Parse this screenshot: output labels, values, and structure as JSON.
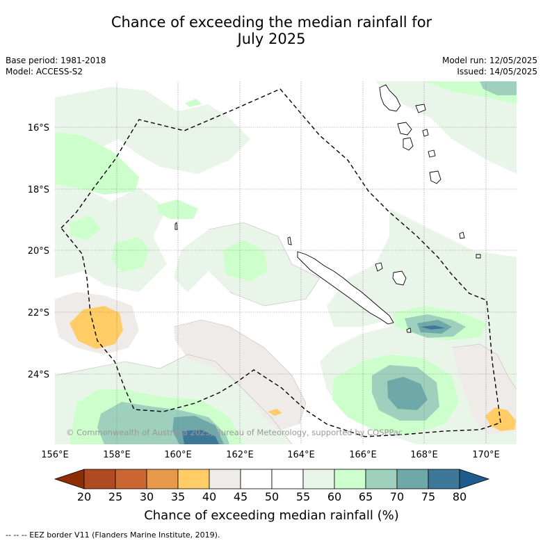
{
  "title": {
    "line1": "Chance of exceeding the median rainfall for",
    "line2": "July 2025"
  },
  "meta": {
    "base_period": "Base period: 1981-2018",
    "model": "Model: ACCESS-S2",
    "model_run": "Model run: 12/05/2025",
    "issued": "Issued: 14/05/2025"
  },
  "map": {
    "lon_labels": [
      "156°E",
      "158°E",
      "160°E",
      "162°E",
      "164°E",
      "166°E",
      "168°E",
      "170°E"
    ],
    "lat_labels": [
      "16°S",
      "18°S",
      "20°S",
      "22°S",
      "24°S"
    ],
    "copyright": "© Commonwealth of Australia 2025, Bureau of Meteorology, supported by COSPPac",
    "colors": {
      "c20": "#8c2d04",
      "c20_25": "#b04a22",
      "c25_30": "#cc6633",
      "c30_35": "#e69a4a",
      "c35_40": "#ffcc66",
      "c40_45": "#efebe8",
      "c45_55": "#ffffff",
      "c55_60": "#e9f5e9",
      "c60_65": "#ccffcc",
      "c65_70": "#9ed0bd",
      "c70_75": "#6fa8a8",
      "c75_80": "#3d7898",
      "c80": "#1f5b8c"
    }
  },
  "colorbar": {
    "ticks": [
      "20",
      "25",
      "30",
      "35",
      "40",
      "45",
      "50",
      "55",
      "60",
      "65",
      "70",
      "75",
      "80"
    ],
    "label": "Chance of exceeding median rainfall (%)"
  },
  "footnote": "--  --  -- EEZ border V11 (Flanders Marine Institute, 2019)."
}
